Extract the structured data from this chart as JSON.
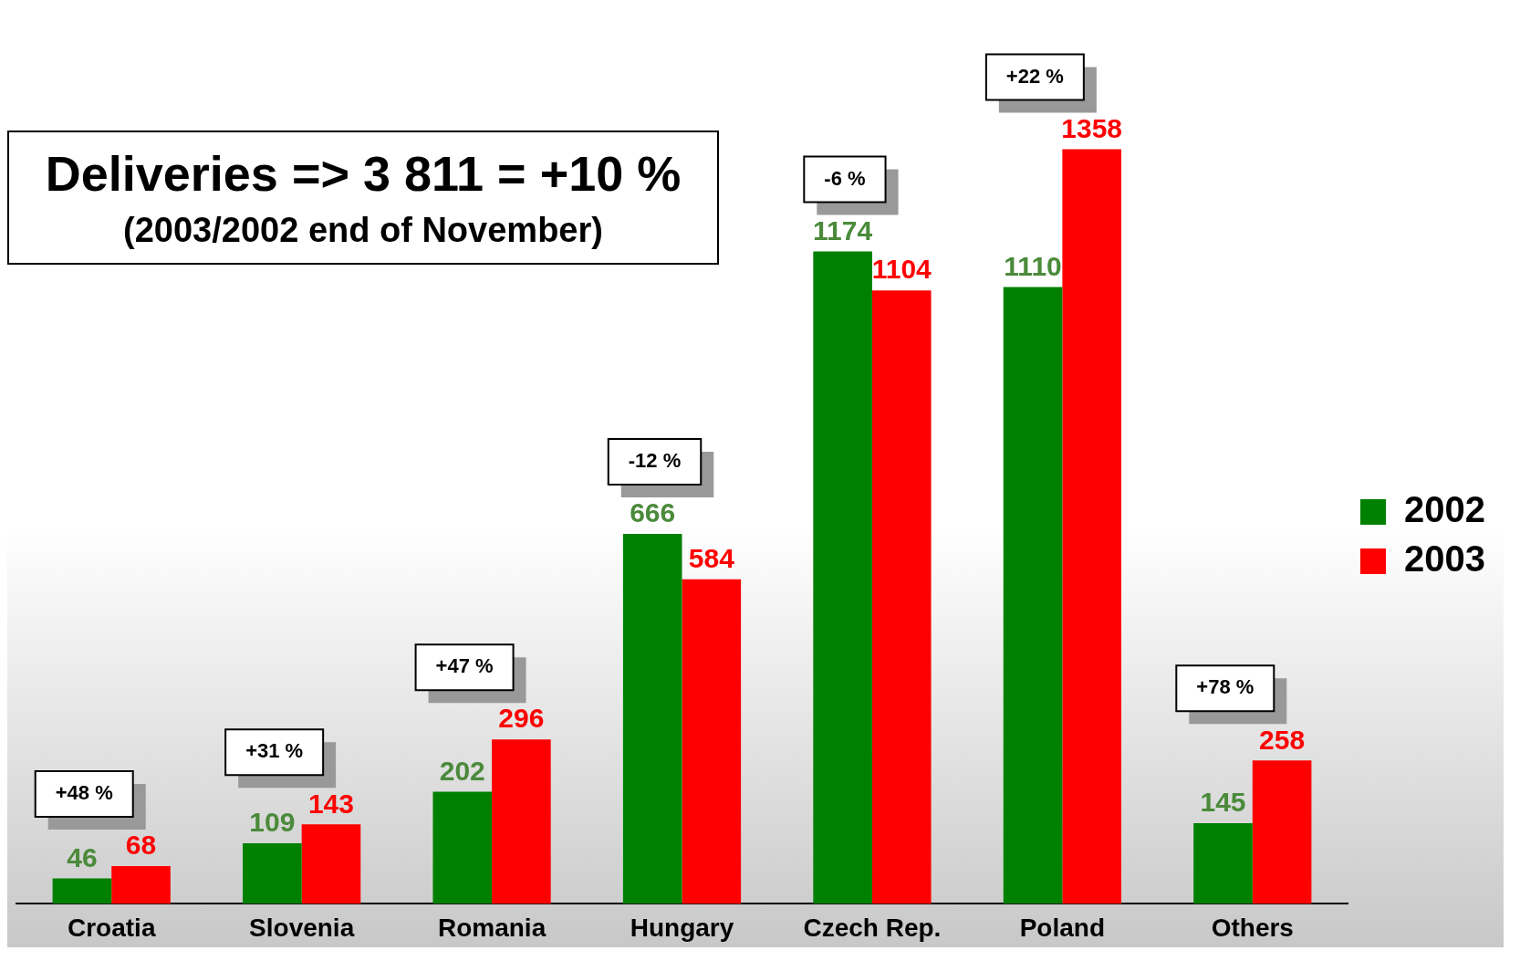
{
  "chart_data": {
    "type": "bar",
    "title": "Deliveries => 3 811 = +10 %",
    "subtitle": "(2003/2002 end of November)",
    "categories": [
      "Croatia",
      "Slovenia",
      "Romania",
      "Hungary",
      "Czech Rep.",
      "Poland",
      "Others"
    ],
    "series": [
      {
        "name": "2002",
        "color": "#008000",
        "values": [
          46,
          109,
          202,
          666,
          1174,
          1110,
          145
        ]
      },
      {
        "name": "2003",
        "color": "#ff0000",
        "values": [
          68,
          143,
          296,
          584,
          1104,
          1358,
          258
        ]
      }
    ],
    "data_labels": true,
    "legend": "right",
    "grid": false,
    "annotations": [
      "+48 %",
      "+31 %",
      "+47 %",
      "-12 %",
      "-6 %",
      "+22 %",
      "+78 %"
    ]
  }
}
